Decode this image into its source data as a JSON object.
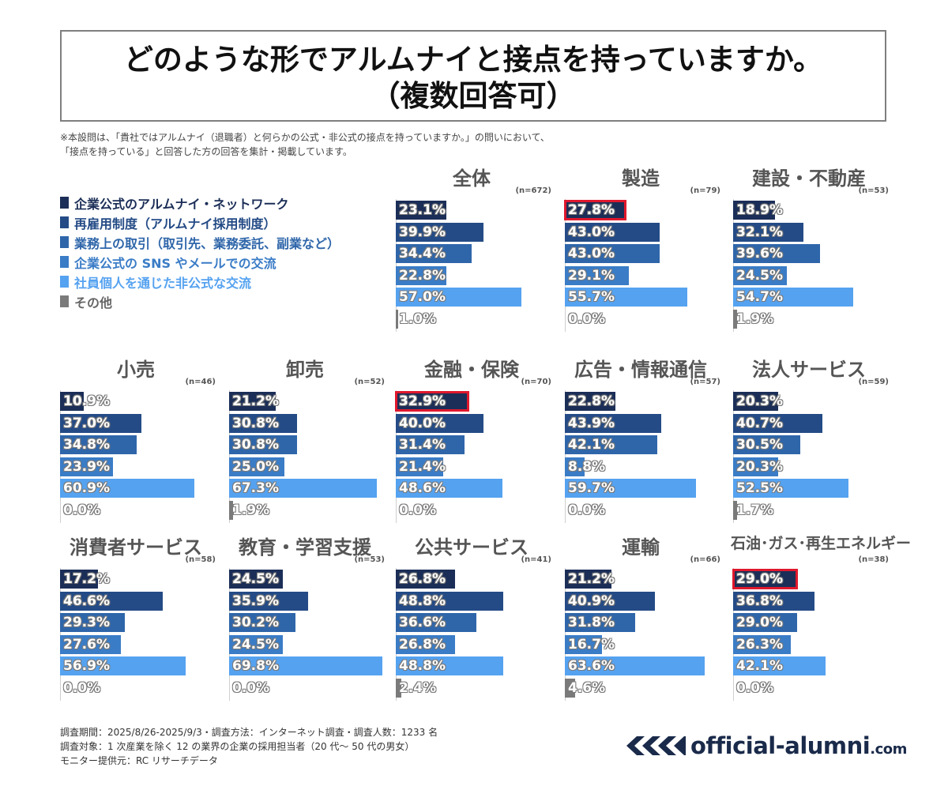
{
  "header": {
    "title_line1": "どのような形でアルムナイと接点を持っていますか。",
    "title_line2": "（複数回答可）"
  },
  "note": {
    "line1": "※本設問は、「貴社ではアルムナイ（退職者）と何らかの公式・非公式の接点を持っていますか。」の問いにおいて、",
    "line2": "「接点を持っている」と回答した方の回答を集計・掲載しています。"
  },
  "legend": [
    {
      "label": "企業公式のアルムナイ・ネットワーク",
      "color": "#1b2e57"
    },
    {
      "label": "再雇用制度（アルムナイ採用制度）",
      "color": "#244b86"
    },
    {
      "label": "業務上の取引（取引先、業務委託、副業など）",
      "color": "#2f66aa"
    },
    {
      "label": "企業公式の SNS やメールでの交流",
      "color": "#3a7cc6"
    },
    {
      "label": "社員個人を通じた非公式な交流",
      "color": "#55a2f0"
    },
    {
      "label": "その他",
      "color": "#7a7a7a"
    }
  ],
  "chart_data": [
    {
      "type": "bar",
      "title": "全体",
      "n": "(n=672)",
      "values": [
        23.1,
        39.9,
        34.4,
        22.8,
        57.0,
        1.0
      ],
      "labels": [
        "23.1%",
        "39.9%",
        "34.4%",
        "22.8%",
        "57.0%",
        "1.0%"
      ],
      "highlight": -1
    },
    {
      "type": "bar",
      "title": "製造",
      "n": "(n=79)",
      "values": [
        27.8,
        43.0,
        43.0,
        29.1,
        55.7,
        0.0
      ],
      "labels": [
        "27.8%",
        "43.0%",
        "43.0%",
        "29.1%",
        "55.7%",
        "0.0%"
      ],
      "highlight": 0
    },
    {
      "type": "bar",
      "title": "建設・不動産",
      "n": "(n=53)",
      "values": [
        18.9,
        32.1,
        39.6,
        24.5,
        54.7,
        1.9
      ],
      "labels": [
        "18.9%",
        "32.1%",
        "39.6%",
        "24.5%",
        "54.7%",
        "1.9%"
      ],
      "highlight": -1
    },
    {
      "type": "bar",
      "title": "小売",
      "n": "(n=46)",
      "values": [
        10.9,
        37.0,
        34.8,
        23.9,
        60.9,
        0.0
      ],
      "labels": [
        "10.9%",
        "37.0%",
        "34.8%",
        "23.9%",
        "60.9%",
        "0.0%"
      ],
      "highlight": -1
    },
    {
      "type": "bar",
      "title": "卸売",
      "n": "(n=52)",
      "values": [
        21.2,
        30.8,
        30.8,
        25.0,
        67.3,
        1.9
      ],
      "labels": [
        "21.2%",
        "30.8%",
        "30.8%",
        "25.0%",
        "67.3%",
        "1.9%"
      ],
      "highlight": -1
    },
    {
      "type": "bar",
      "title": "金融・保険",
      "n": "(n=70)",
      "values": [
        32.9,
        40.0,
        31.4,
        21.4,
        48.6,
        0.0
      ],
      "labels": [
        "32.9%",
        "40.0%",
        "31.4%",
        "21.4%",
        "48.6%",
        "0.0%"
      ],
      "highlight": 0
    },
    {
      "type": "bar",
      "title": "広告・情報通信",
      "n": "(n=57)",
      "values": [
        22.8,
        43.9,
        42.1,
        8.8,
        59.7,
        0.0
      ],
      "labels": [
        "22.8%",
        "43.9%",
        "42.1%",
        "8.8%",
        "59.7%",
        "0.0%"
      ],
      "highlight": -1
    },
    {
      "type": "bar",
      "title": "法人サービス",
      "n": "(n=59)",
      "values": [
        20.3,
        40.7,
        30.5,
        20.3,
        52.5,
        1.7
      ],
      "labels": [
        "20.3%",
        "40.7%",
        "30.5%",
        "20.3%",
        "52.5%",
        "1.7%"
      ],
      "highlight": -1
    },
    {
      "type": "bar",
      "title": "消費者サービス",
      "n": "(n=58)",
      "values": [
        17.2,
        46.6,
        29.3,
        27.6,
        56.9,
        0.0
      ],
      "labels": [
        "17.2%",
        "46.6%",
        "29.3%",
        "27.6%",
        "56.9%",
        "0.0%"
      ],
      "highlight": -1
    },
    {
      "type": "bar",
      "title": "教育・学習支援",
      "n": "(n=53)",
      "values": [
        24.5,
        35.9,
        30.2,
        24.5,
        69.8,
        0.0
      ],
      "labels": [
        "24.5%",
        "35.9%",
        "30.2%",
        "24.5%",
        "69.8%",
        "0.0%"
      ],
      "highlight": -1
    },
    {
      "type": "bar",
      "title": "公共サービス",
      "n": "(n=41)",
      "values": [
        26.8,
        48.8,
        36.6,
        26.8,
        48.8,
        2.4
      ],
      "labels": [
        "26.8%",
        "48.8%",
        "36.6%",
        "26.8%",
        "48.8%",
        "2.4%"
      ],
      "highlight": -1
    },
    {
      "type": "bar",
      "title": "運輸",
      "n": "(n=66)",
      "values": [
        21.2,
        40.9,
        31.8,
        16.7,
        63.6,
        4.6
      ],
      "labels": [
        "21.2%",
        "40.9%",
        "31.8%",
        "16.7%",
        "63.6%",
        "4.6%"
      ],
      "highlight": -1
    },
    {
      "type": "bar",
      "title": "石油･ガス･再生エネルギー",
      "n": "(n=38)",
      "values": [
        29.0,
        36.8,
        29.0,
        26.3,
        42.1,
        0.0
      ],
      "labels": [
        "29.0%",
        "36.8%",
        "29.0%",
        "26.3%",
        "42.1%",
        "0.0%"
      ],
      "highlight": 0
    }
  ],
  "footer": {
    "line1": "調査期間：2025/8/26-2025/9/3・調査方法：インターネット調査・調査人数：1233 名",
    "line2": "調査対象：1 次産業を除く 12 の業界の企業の採用担当者（20 代～ 50 代の男女）",
    "line3": "モニター提供元：RC リサーチデータ"
  },
  "logo": {
    "text": "official-alumni",
    "suffix": ".com",
    "icon": "chevrons-logo-icon"
  }
}
